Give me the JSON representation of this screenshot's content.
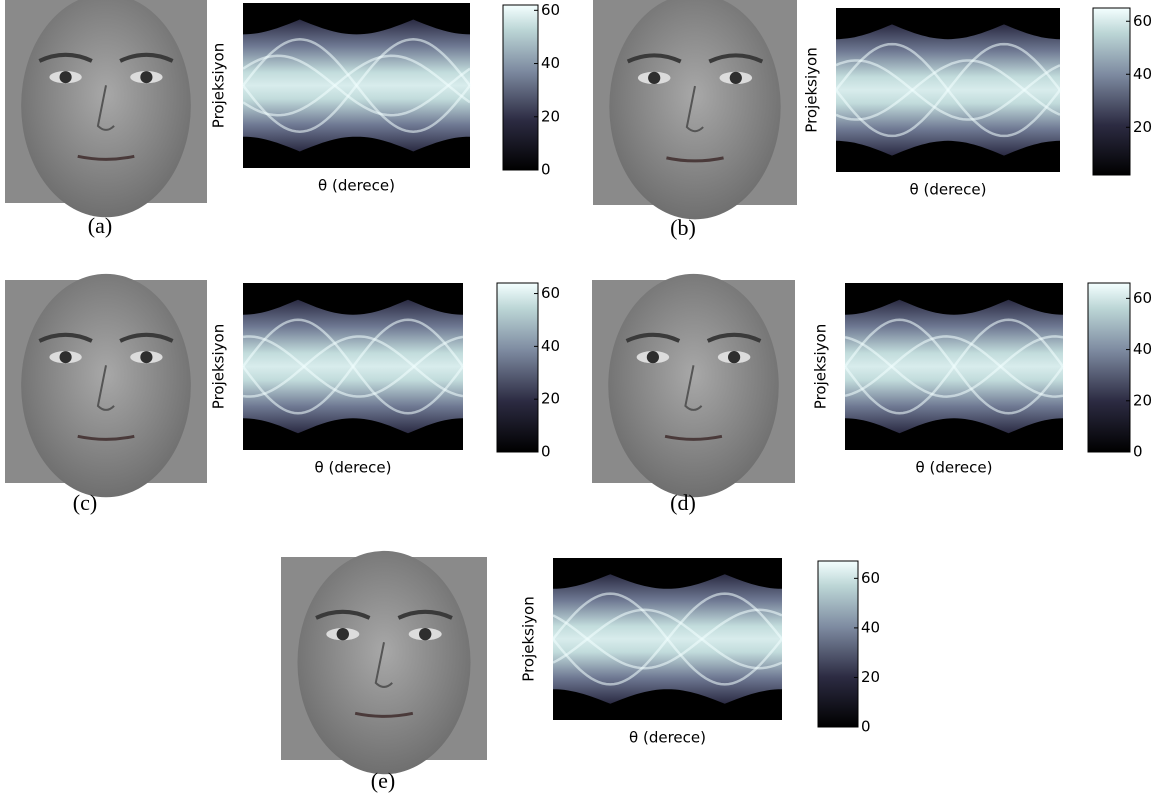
{
  "panels": [
    {
      "label": "(a)",
      "y_label": "Projeksiyon",
      "x_label": "θ (derece)",
      "colorbar": {
        "lim": [
          0,
          62
        ],
        "ticks": [
          0,
          20,
          40,
          60
        ]
      }
    },
    {
      "label": "(b)",
      "y_label": "Projeksiyon",
      "x_label": "θ (derece)",
      "colorbar": {
        "lim": [
          2,
          65
        ],
        "ticks": [
          20,
          40,
          60
        ]
      }
    },
    {
      "label": "(c)",
      "y_label": "Projeksiyon",
      "x_label": "θ (derece)",
      "colorbar": {
        "lim": [
          0,
          64
        ],
        "ticks": [
          0,
          20,
          40,
          60
        ]
      }
    },
    {
      "label": "(d)",
      "y_label": "Projeksiyon",
      "x_label": "θ (derece)",
      "colorbar": {
        "lim": [
          0,
          66
        ],
        "ticks": [
          0,
          20,
          40,
          60
        ]
      }
    },
    {
      "label": "(e)",
      "y_label": "Projeksiyon",
      "x_label": "θ (derece)",
      "colorbar": {
        "lim": [
          0,
          67
        ],
        "ticks": [
          0,
          20,
          40,
          60
        ]
      }
    }
  ]
}
